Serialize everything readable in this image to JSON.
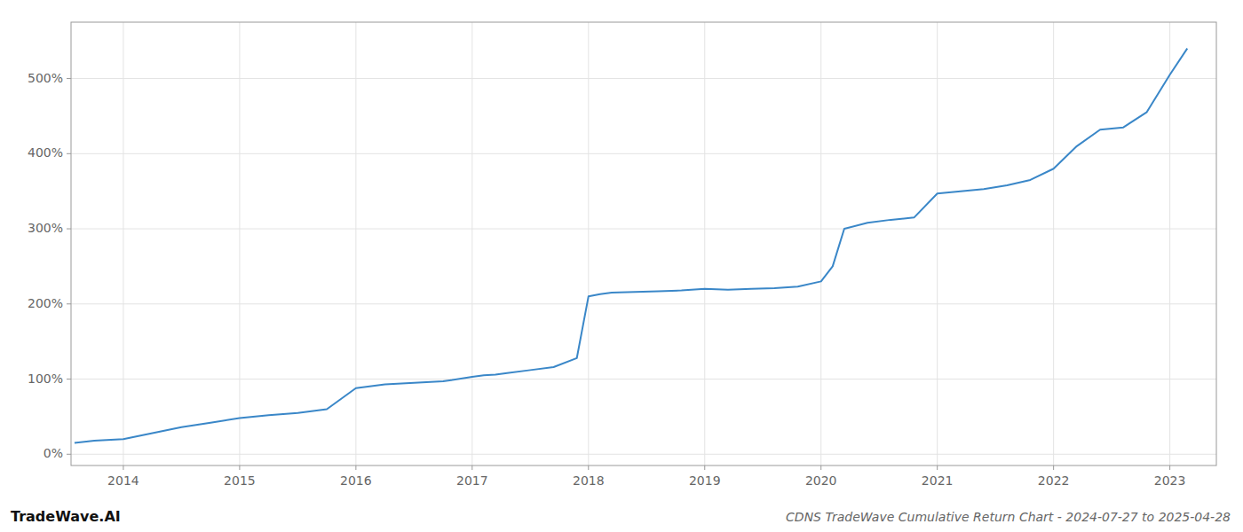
{
  "chart_data": {
    "type": "line",
    "title": "CDNS TradeWave Cumulative Return Chart - 2024-07-27 to 2025-04-28",
    "annotations": [
      "TradeWave.AI"
    ],
    "color": "#3a87c8",
    "grid": true,
    "x": [
      2013.58,
      2013.75,
      2014.0,
      2014.25,
      2014.5,
      2014.75,
      2015.0,
      2015.25,
      2015.5,
      2015.75,
      2016.0,
      2016.25,
      2016.5,
      2016.75,
      2017.0,
      2017.1,
      2017.2,
      2017.3,
      2017.5,
      2017.7,
      2017.9,
      2018.0,
      2018.1,
      2018.2,
      2018.4,
      2018.6,
      2018.8,
      2019.0,
      2019.2,
      2019.4,
      2019.6,
      2019.8,
      2020.0,
      2020.1,
      2020.2,
      2020.4,
      2020.6,
      2020.8,
      2021.0,
      2021.2,
      2021.4,
      2021.6,
      2021.8,
      2022.0,
      2022.2,
      2022.4,
      2022.6,
      2022.8,
      2023.0,
      2023.15
    ],
    "values": [
      15,
      18,
      20,
      28,
      36,
      42,
      48,
      52,
      55,
      60,
      88,
      93,
      95,
      97,
      103,
      105,
      106,
      108,
      112,
      116,
      128,
      210,
      213,
      215,
      216,
      217,
      218,
      220,
      219,
      220,
      221,
      223,
      230,
      250,
      300,
      308,
      312,
      315,
      347,
      350,
      353,
      358,
      365,
      380,
      410,
      432,
      435,
      455,
      505,
      540
    ],
    "xlim": [
      2013.55,
      2023.4
    ],
    "ylim": [
      -15,
      575
    ],
    "xticks": [
      2014,
      2015,
      2016,
      2017,
      2018,
      2019,
      2020,
      2021,
      2022,
      2023
    ],
    "yticks": [
      {
        "value": 0,
        "label": "0%"
      },
      {
        "value": 100,
        "label": "100%"
      },
      {
        "value": 200,
        "label": "200%"
      },
      {
        "value": 300,
        "label": "300%"
      },
      {
        "value": 400,
        "label": "400%"
      },
      {
        "value": 500,
        "label": "500%"
      }
    ]
  }
}
